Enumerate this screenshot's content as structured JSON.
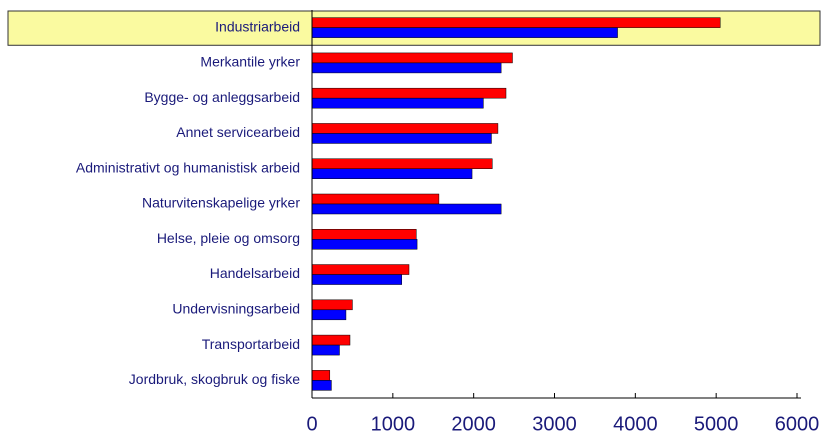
{
  "chart_data": {
    "type": "hbar",
    "categories": [
      "Industriarbeid",
      "Merkantile yrker",
      "Bygge- og anleggsarbeid",
      "Annet servicearbeid",
      "Administrativt og humanistisk arbeid",
      "Naturvitenskapelige yrker",
      "Helse, pleie og omsorg",
      "Handelsarbeid",
      "Undervisningsarbeid",
      "Transportarbeid",
      "Jordbruk, skogbruk og fiske"
    ],
    "series": [
      {
        "color": "#ff0000",
        "values": [
          5050,
          2480,
          2400,
          2300,
          2230,
          1570,
          1290,
          1200,
          500,
          470,
          220
        ]
      },
      {
        "color": "#0000ff",
        "values": [
          3780,
          2340,
          2120,
          2220,
          1980,
          2340,
          1300,
          1110,
          420,
          340,
          240
        ]
      }
    ],
    "xlim": [
      0,
      6000
    ],
    "xticks": [
      0,
      1000,
      2000,
      3000,
      4000,
      5000,
      6000
    ],
    "highlight": 0,
    "highlight_color": "#fafaa0"
  }
}
